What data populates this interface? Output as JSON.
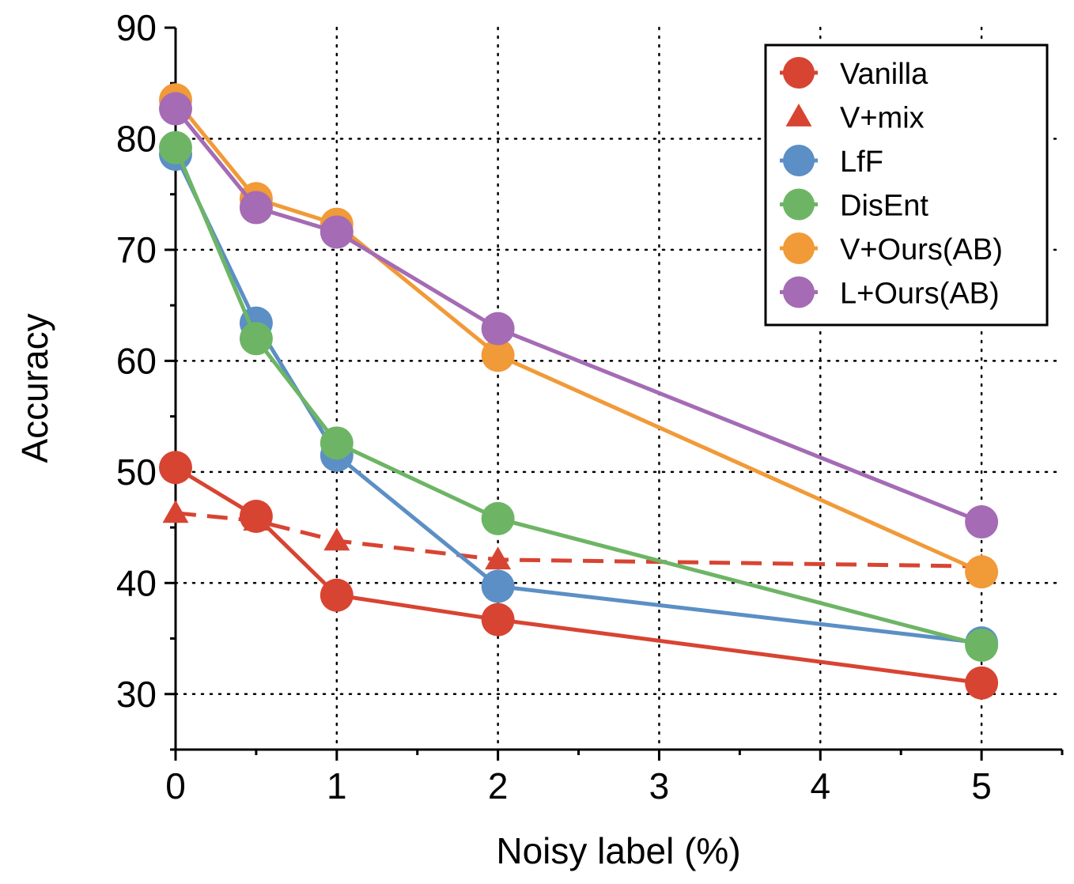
{
  "chart_data": {
    "type": "line",
    "xlabel": "Noisy label (%)",
    "ylabel": "Accuracy",
    "xlim": [
      0,
      5.5
    ],
    "ylim": [
      25,
      90
    ],
    "x_ticks": [
      0,
      1,
      2,
      3,
      4,
      5
    ],
    "x_tick_labels": [
      "0",
      "1",
      "2",
      "3",
      "4",
      "5"
    ],
    "y_ticks": [
      30,
      40,
      50,
      60,
      70,
      80,
      90
    ],
    "y_tick_labels": [
      "30",
      "40",
      "50",
      "60",
      "70",
      "80",
      "90"
    ],
    "grid": true,
    "legend_position": "top-right",
    "series": [
      {
        "name": "Vanilla",
        "color": "#d84432",
        "marker": "circle",
        "dashed": false,
        "x": [
          0,
          0.5,
          1,
          2,
          5
        ],
        "values": [
          50.4,
          46.0,
          38.9,
          36.7,
          31.0
        ]
      },
      {
        "name": "V+mix",
        "color": "#d84432",
        "marker": "triangle",
        "dashed": true,
        "x": [
          0,
          0.5,
          1,
          2,
          5
        ],
        "values": [
          46.3,
          45.6,
          43.8,
          42.1,
          41.5
        ]
      },
      {
        "name": "LfF",
        "color": "#5b8fc5",
        "marker": "circle",
        "dashed": false,
        "x": [
          0,
          0.5,
          1,
          2,
          5
        ],
        "values": [
          78.6,
          63.4,
          51.5,
          39.7,
          34.6
        ]
      },
      {
        "name": "DisEnt",
        "color": "#6db565",
        "marker": "circle",
        "dashed": false,
        "x": [
          0,
          0.5,
          1,
          2,
          5
        ],
        "values": [
          79.2,
          62.0,
          52.6,
          45.8,
          34.4
        ]
      },
      {
        "name": "V+Ours(AB)",
        "color": "#f19a38",
        "marker": "circle",
        "dashed": false,
        "x": [
          0,
          0.5,
          1,
          2,
          5
        ],
        "values": [
          83.5,
          74.6,
          72.3,
          60.5,
          41.0
        ]
      },
      {
        "name": "L+Ours(AB)",
        "color": "#a56bb4",
        "marker": "circle",
        "dashed": false,
        "x": [
          0,
          0.5,
          1,
          2,
          5
        ],
        "values": [
          82.7,
          73.8,
          71.6,
          62.9,
          45.5
        ]
      }
    ]
  }
}
